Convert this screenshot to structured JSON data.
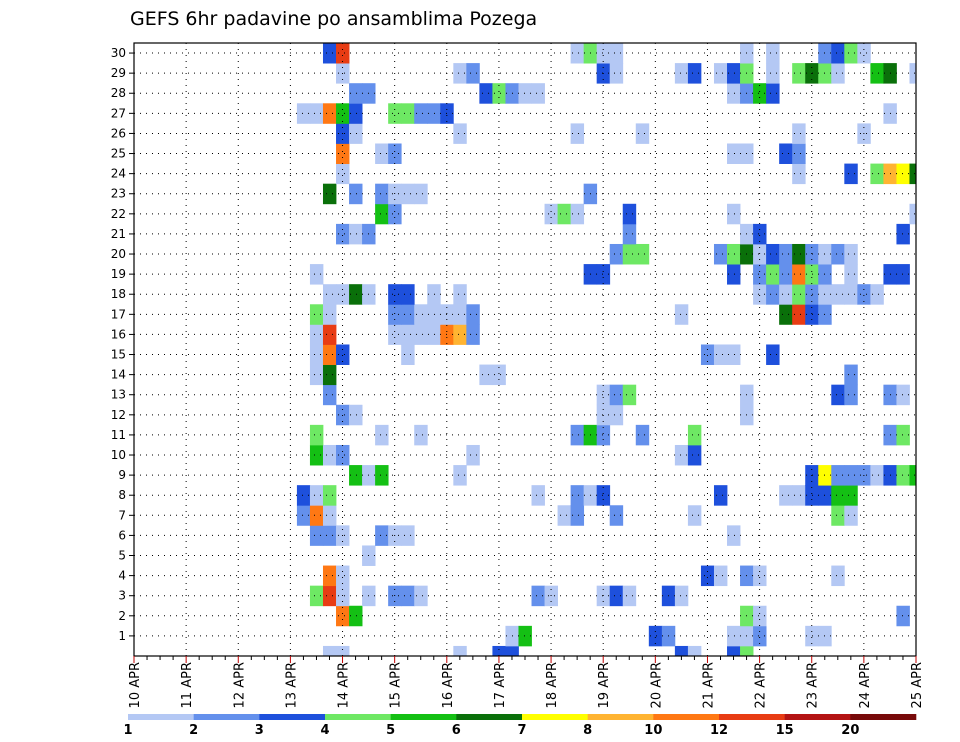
{
  "chart_data": {
    "type": "heatmap",
    "title": "GEFS 6hr padavine po ansamblima Pozega",
    "x_labels": [
      "10 APR",
      "11 APR",
      "12 APR",
      "13 APR",
      "14 APR",
      "15 APR",
      "16 APR",
      "17 APR",
      "18 APR",
      "19 APR",
      "20 APR",
      "21 APR",
      "22 APR",
      "23 APR",
      "24 APR",
      "25 APR"
    ],
    "y_labels": [
      "1",
      "2",
      "3",
      "4",
      "5",
      "6",
      "7",
      "8",
      "9",
      "10",
      "11",
      "12",
      "13",
      "14",
      "15",
      "16",
      "17",
      "18",
      "19",
      "20",
      "21",
      "22",
      "23",
      "24",
      "25",
      "26",
      "27",
      "28",
      "29",
      "30"
    ],
    "steps_per_day": 4,
    "n_steps": 61,
    "y_rows": 31,
    "grid": true,
    "colorbar": {
      "ticks": [
        "1",
        "2",
        "3",
        "4",
        "5",
        "6",
        "7",
        "8",
        "10",
        "12",
        "15",
        "20"
      ],
      "colors": [
        "#b4c8f4",
        "#6490ec",
        "#1e50dc",
        "#6ee864",
        "#14c014",
        "#0a700a",
        "#ffff00",
        "#ffb432",
        "#ff7814",
        "#e83c14",
        "#b41414",
        "#780a0a"
      ]
    },
    "cells": [
      [
        0,
        15,
        1
      ],
      [
        0,
        16,
        1
      ],
      [
        0,
        25,
        1
      ],
      [
        0,
        28,
        3
      ],
      [
        0,
        29,
        3
      ],
      [
        0,
        42,
        3
      ],
      [
        0,
        43,
        1
      ],
      [
        0,
        46,
        3
      ],
      [
        0,
        47,
        4
      ],
      [
        1,
        29,
        1
      ],
      [
        1,
        30,
        5
      ],
      [
        1,
        40,
        3
      ],
      [
        1,
        41,
        2
      ],
      [
        1,
        46,
        1
      ],
      [
        1,
        47,
        1
      ],
      [
        1,
        48,
        2
      ],
      [
        1,
        52,
        1
      ],
      [
        1,
        53,
        1
      ],
      [
        2,
        16,
        9
      ],
      [
        2,
        17,
        5
      ],
      [
        2,
        47,
        4
      ],
      [
        2,
        48,
        1
      ],
      [
        2,
        59,
        2
      ],
      [
        3,
        14,
        4
      ],
      [
        3,
        15,
        10
      ],
      [
        3,
        16,
        1
      ],
      [
        3,
        18,
        1
      ],
      [
        3,
        20,
        2
      ],
      [
        3,
        21,
        2
      ],
      [
        3,
        22,
        1
      ],
      [
        3,
        31,
        2
      ],
      [
        3,
        32,
        1
      ],
      [
        3,
        36,
        1
      ],
      [
        3,
        37,
        3
      ],
      [
        3,
        38,
        1
      ],
      [
        3,
        41,
        3
      ],
      [
        3,
        42,
        1
      ],
      [
        4,
        15,
        9
      ],
      [
        4,
        16,
        1
      ],
      [
        4,
        44,
        3
      ],
      [
        4,
        45,
        1
      ],
      [
        4,
        47,
        2
      ],
      [
        4,
        48,
        1
      ],
      [
        4,
        54,
        1
      ],
      [
        5,
        18,
        1
      ],
      [
        6,
        14,
        2
      ],
      [
        6,
        15,
        2
      ],
      [
        6,
        16,
        1
      ],
      [
        6,
        19,
        2
      ],
      [
        6,
        20,
        1
      ],
      [
        6,
        21,
        1
      ],
      [
        6,
        46,
        1
      ],
      [
        7,
        13,
        2
      ],
      [
        7,
        14,
        9
      ],
      [
        7,
        15,
        1
      ],
      [
        7,
        33,
        1
      ],
      [
        7,
        34,
        2
      ],
      [
        7,
        37,
        2
      ],
      [
        7,
        43,
        1
      ],
      [
        7,
        54,
        4
      ],
      [
        7,
        55,
        1
      ],
      [
        8,
        13,
        3
      ],
      [
        8,
        14,
        1
      ],
      [
        8,
        15,
        4
      ],
      [
        8,
        31,
        1
      ],
      [
        8,
        34,
        2
      ],
      [
        8,
        35,
        1
      ],
      [
        8,
        36,
        3
      ],
      [
        8,
        45,
        3
      ],
      [
        8,
        50,
        1
      ],
      [
        8,
        51,
        1
      ],
      [
        8,
        52,
        3
      ],
      [
        8,
        53,
        3
      ],
      [
        8,
        54,
        5
      ],
      [
        8,
        55,
        5
      ],
      [
        9,
        17,
        5
      ],
      [
        9,
        18,
        1
      ],
      [
        9,
        19,
        5
      ],
      [
        9,
        25,
        1
      ],
      [
        9,
        52,
        3
      ],
      [
        9,
        53,
        7
      ],
      [
        9,
        54,
        2
      ],
      [
        9,
        55,
        2
      ],
      [
        9,
        56,
        2
      ],
      [
        9,
        57,
        1
      ],
      [
        9,
        58,
        3
      ],
      [
        9,
        59,
        4
      ],
      [
        9,
        60,
        5
      ],
      [
        10,
        14,
        5
      ],
      [
        10,
        15,
        1
      ],
      [
        10,
        16,
        2
      ],
      [
        10,
        26,
        1
      ],
      [
        10,
        42,
        1
      ],
      [
        10,
        43,
        3
      ],
      [
        11,
        14,
        4
      ],
      [
        11,
        19,
        1
      ],
      [
        11,
        22,
        1
      ],
      [
        11,
        34,
        2
      ],
      [
        11,
        35,
        5
      ],
      [
        11,
        36,
        2
      ],
      [
        11,
        39,
        2
      ],
      [
        11,
        43,
        4
      ],
      [
        11,
        58,
        2
      ],
      [
        11,
        59,
        4
      ],
      [
        12,
        16,
        2
      ],
      [
        12,
        17,
        1
      ],
      [
        12,
        36,
        1
      ],
      [
        12,
        37,
        1
      ],
      [
        12,
        47,
        1
      ],
      [
        13,
        15,
        2
      ],
      [
        13,
        36,
        1
      ],
      [
        13,
        37,
        2
      ],
      [
        13,
        38,
        4
      ],
      [
        13,
        47,
        1
      ],
      [
        13,
        54,
        3
      ],
      [
        13,
        55,
        2
      ],
      [
        13,
        58,
        2
      ],
      [
        13,
        59,
        1
      ],
      [
        14,
        14,
        1
      ],
      [
        14,
        15,
        6
      ],
      [
        14,
        27,
        1
      ],
      [
        14,
        28,
        1
      ],
      [
        14,
        55,
        2
      ],
      [
        15,
        14,
        1
      ],
      [
        15,
        15,
        9
      ],
      [
        15,
        16,
        3
      ],
      [
        15,
        21,
        1
      ],
      [
        15,
        44,
        2
      ],
      [
        15,
        45,
        1
      ],
      [
        15,
        46,
        1
      ],
      [
        15,
        49,
        3
      ],
      [
        16,
        14,
        1
      ],
      [
        16,
        15,
        10
      ],
      [
        16,
        20,
        1
      ],
      [
        16,
        21,
        1
      ],
      [
        16,
        22,
        1
      ],
      [
        16,
        23,
        1
      ],
      [
        16,
        24,
        9
      ],
      [
        16,
        25,
        8
      ],
      [
        16,
        26,
        2
      ],
      [
        17,
        14,
        4
      ],
      [
        17,
        15,
        1
      ],
      [
        17,
        20,
        2
      ],
      [
        17,
        21,
        2
      ],
      [
        17,
        22,
        1
      ],
      [
        17,
        23,
        1
      ],
      [
        17,
        24,
        1
      ],
      [
        17,
        25,
        1
      ],
      [
        17,
        26,
        2
      ],
      [
        17,
        42,
        1
      ],
      [
        17,
        50,
        6
      ],
      [
        17,
        51,
        10
      ],
      [
        17,
        52,
        3
      ],
      [
        17,
        53,
        2
      ],
      [
        18,
        15,
        1
      ],
      [
        18,
        16,
        1
      ],
      [
        18,
        17,
        6
      ],
      [
        18,
        18,
        1
      ],
      [
        18,
        20,
        3
      ],
      [
        18,
        21,
        3
      ],
      [
        18,
        23,
        1
      ],
      [
        18,
        25,
        1
      ],
      [
        18,
        48,
        1
      ],
      [
        18,
        49,
        2
      ],
      [
        18,
        50,
        1
      ],
      [
        18,
        51,
        4
      ],
      [
        18,
        52,
        2
      ],
      [
        18,
        53,
        1
      ],
      [
        18,
        54,
        1
      ],
      [
        18,
        55,
        1
      ],
      [
        18,
        56,
        2
      ],
      [
        18,
        57,
        1
      ],
      [
        19,
        14,
        1
      ],
      [
        19,
        35,
        3
      ],
      [
        19,
        36,
        3
      ],
      [
        19,
        46,
        3
      ],
      [
        19,
        48,
        2
      ],
      [
        19,
        49,
        4
      ],
      [
        19,
        50,
        2
      ],
      [
        19,
        51,
        9
      ],
      [
        19,
        52,
        4
      ],
      [
        19,
        53,
        2
      ],
      [
        19,
        55,
        1
      ],
      [
        19,
        58,
        3
      ],
      [
        19,
        59,
        3
      ],
      [
        20,
        37,
        2
      ],
      [
        20,
        38,
        4
      ],
      [
        20,
        39,
        4
      ],
      [
        20,
        45,
        2
      ],
      [
        20,
        46,
        4
      ],
      [
        20,
        47,
        6
      ],
      [
        20,
        48,
        1
      ],
      [
        20,
        49,
        3
      ],
      [
        20,
        50,
        2
      ],
      [
        20,
        51,
        6
      ],
      [
        20,
        52,
        2
      ],
      [
        20,
        53,
        1
      ],
      [
        20,
        54,
        2
      ],
      [
        20,
        55,
        1
      ],
      [
        21,
        16,
        2
      ],
      [
        21,
        17,
        1
      ],
      [
        21,
        18,
        2
      ],
      [
        21,
        38,
        2
      ],
      [
        21,
        47,
        1
      ],
      [
        21,
        48,
        3
      ],
      [
        21,
        59,
        3
      ],
      [
        22,
        19,
        5
      ],
      [
        22,
        20,
        2
      ],
      [
        22,
        32,
        1
      ],
      [
        22,
        33,
        4
      ],
      [
        22,
        34,
        1
      ],
      [
        22,
        38,
        3
      ],
      [
        22,
        46,
        1
      ],
      [
        22,
        60,
        1
      ],
      [
        23,
        15,
        6
      ],
      [
        23,
        17,
        2
      ],
      [
        23,
        19,
        2
      ],
      [
        23,
        20,
        1
      ],
      [
        23,
        21,
        1
      ],
      [
        23,
        22,
        1
      ],
      [
        23,
        35,
        2
      ],
      [
        24,
        16,
        1
      ],
      [
        24,
        51,
        1
      ],
      [
        24,
        55,
        3
      ],
      [
        24,
        57,
        4
      ],
      [
        24,
        58,
        8
      ],
      [
        24,
        59,
        7
      ],
      [
        24,
        60,
        6
      ],
      [
        25,
        16,
        9
      ],
      [
        25,
        19,
        1
      ],
      [
        25,
        20,
        2
      ],
      [
        25,
        46,
        1
      ],
      [
        25,
        47,
        1
      ],
      [
        25,
        50,
        3
      ],
      [
        25,
        51,
        2
      ],
      [
        26,
        16,
        3
      ],
      [
        26,
        17,
        1
      ],
      [
        26,
        25,
        1
      ],
      [
        26,
        34,
        1
      ],
      [
        26,
        39,
        1
      ],
      [
        26,
        51,
        1
      ],
      [
        26,
        56,
        1
      ],
      [
        27,
        13,
        1
      ],
      [
        27,
        14,
        1
      ],
      [
        27,
        15,
        9
      ],
      [
        27,
        16,
        5
      ],
      [
        27,
        17,
        3
      ],
      [
        27,
        20,
        4
      ],
      [
        27,
        21,
        4
      ],
      [
        27,
        22,
        2
      ],
      [
        27,
        23,
        2
      ],
      [
        27,
        24,
        3
      ],
      [
        27,
        58,
        1
      ],
      [
        28,
        17,
        2
      ],
      [
        28,
        18,
        2
      ],
      [
        28,
        27,
        3
      ],
      [
        28,
        28,
        4
      ],
      [
        28,
        29,
        2
      ],
      [
        28,
        30,
        1
      ],
      [
        28,
        31,
        1
      ],
      [
        28,
        46,
        1
      ],
      [
        28,
        47,
        2
      ],
      [
        28,
        48,
        5
      ],
      [
        28,
        49,
        3
      ],
      [
        29,
        16,
        1
      ],
      [
        29,
        25,
        1
      ],
      [
        29,
        26,
        2
      ],
      [
        29,
        36,
        3
      ],
      [
        29,
        37,
        1
      ],
      [
        29,
        42,
        1
      ],
      [
        29,
        43,
        3
      ],
      [
        29,
        45,
        1
      ],
      [
        29,
        46,
        3
      ],
      [
        29,
        47,
        4
      ],
      [
        29,
        49,
        1
      ],
      [
        29,
        51,
        4
      ],
      [
        29,
        52,
        6
      ],
      [
        29,
        53,
        4
      ],
      [
        29,
        54,
        1
      ],
      [
        29,
        57,
        5
      ],
      [
        29,
        58,
        6
      ],
      [
        29,
        60,
        1
      ],
      [
        30,
        15,
        3
      ],
      [
        30,
        16,
        10
      ],
      [
        30,
        34,
        1
      ],
      [
        30,
        35,
        4
      ],
      [
        30,
        36,
        1
      ],
      [
        30,
        37,
        1
      ],
      [
        30,
        47,
        1
      ],
      [
        30,
        49,
        1
      ],
      [
        30,
        53,
        2
      ],
      [
        30,
        54,
        3
      ],
      [
        30,
        55,
        4
      ],
      [
        30,
        56,
        1
      ]
    ]
  }
}
